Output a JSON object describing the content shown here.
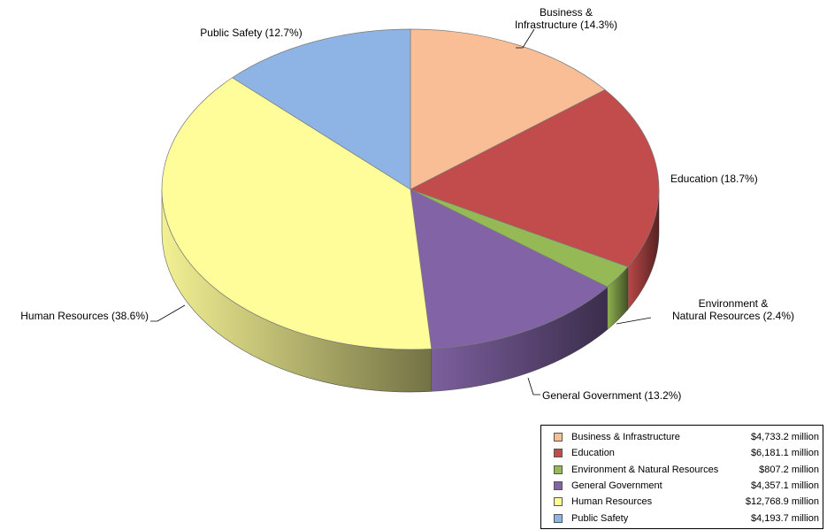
{
  "chart_data": {
    "type": "pie",
    "title": "",
    "slices": [
      {
        "name": "Business & Infrastructure",
        "label_lines": [
          "Business &",
          "Infrastructure (14.3%)"
        ],
        "percent": 14.3,
        "value": "$4,733.2 million",
        "color": "#F9BE95"
      },
      {
        "name": "Education",
        "label_lines": [
          "Education (18.7%)"
        ],
        "percent": 18.7,
        "value": "$6,181.1 million",
        "color": "#C24B4B"
      },
      {
        "name": "Environment & Natural Resources",
        "label_lines": [
          "Environment &",
          "Natural Resources (2.4%)"
        ],
        "percent": 2.4,
        "value": "$807.2 million",
        "color": "#95B954"
      },
      {
        "name": "General Government",
        "label_lines": [
          "General Government (13.2%)"
        ],
        "percent": 13.2,
        "value": "$4,357.1 million",
        "color": "#8264A6"
      },
      {
        "name": "Human Resources",
        "label_lines": [
          "Human Resources (38.6%)"
        ],
        "percent": 38.6,
        "value": "$12,768.9 million",
        "color": "#FFFD9A"
      },
      {
        "name": "Public Safety",
        "label_lines": [
          "Public Safety (12.7%)"
        ],
        "percent": 12.7,
        "value": "$4,193.7 million",
        "color": "#8EB4E6"
      }
    ],
    "legend_position": "bottom-right",
    "style": "3d-tilted"
  }
}
